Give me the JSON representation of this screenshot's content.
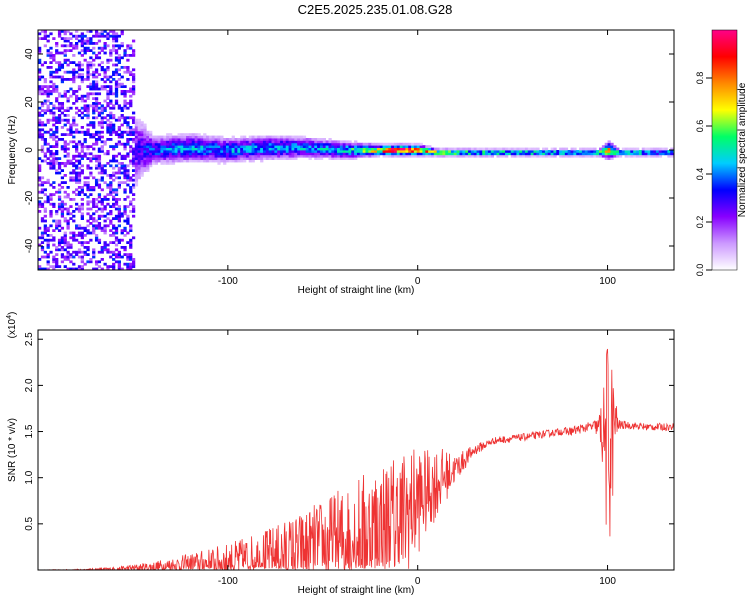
{
  "figure_title": "C2E5.2025.235.01.08.G28",
  "chart_data": [
    {
      "type": "heatmap",
      "title": "C2E5.2025.235.01.08.G28",
      "xlabel": "Height of straight line (km)",
      "ylabel": "Frequency (Hz)",
      "xlim": [
        -200,
        135
      ],
      "ylim": [
        -50,
        50
      ],
      "x_ticks": [
        -100,
        0,
        100
      ],
      "x_tick_labels": [
        "-100",
        "0",
        "100"
      ],
      "y_ticks": [
        -40,
        -20,
        0,
        20,
        40
      ],
      "y_tick_labels": [
        "-40",
        "-20",
        "0",
        "20",
        "40"
      ],
      "colorbar": {
        "label": "Normalized spectral amplitude",
        "range": [
          0.0,
          1.0
        ],
        "ticks": [
          0.0,
          0.2,
          0.4,
          0.6,
          0.8
        ],
        "tick_labels": [
          "0.0",
          "0.2",
          "0.4",
          "0.6",
          "0.8"
        ],
        "colormap": [
          "#ffffff",
          "#cc99ff",
          "#8800ff",
          "#0000ff",
          "#00ccff",
          "#00ff66",
          "#ffff00",
          "#ff8800",
          "#ff0000",
          "#ff0088"
        ]
      },
      "band_profile": {
        "x": [
          -200,
          -170,
          -155,
          -140,
          -120,
          -100,
          -80,
          -60,
          -40,
          -20,
          -10,
          0,
          10,
          30,
          60,
          95,
          100,
          105,
          135
        ],
        "center_hz": [
          0,
          0,
          0,
          0,
          1,
          0,
          1,
          1,
          0,
          0,
          0,
          0,
          -1,
          -1,
          -1,
          -1,
          0,
          -1,
          -1
        ],
        "halfwidth_hz": [
          40,
          40,
          30,
          8,
          8,
          7,
          7,
          6,
          5,
          3,
          3,
          3,
          2,
          2,
          2,
          2,
          5,
          2,
          2
        ],
        "peak_amplitude": [
          0.25,
          0.25,
          0.2,
          0.35,
          0.4,
          0.4,
          0.4,
          0.4,
          0.45,
          0.75,
          1.0,
          0.8,
          0.6,
          0.55,
          0.5,
          0.5,
          0.7,
          0.5,
          0.45
        ]
      }
    },
    {
      "type": "line",
      "xlabel": "Height of straight line (km)",
      "ylabel": "SNR (10 * v/v)",
      "y_scale_label": "(x10",
      "y_scale_exponent": "4",
      "y_scale_suffix": ")",
      "xlim": [
        -200,
        135
      ],
      "ylim": [
        0,
        2.6
      ],
      "x_ticks": [
        -100,
        0,
        100
      ],
      "x_tick_labels": [
        "-100",
        "0",
        "100"
      ],
      "y_ticks": [
        0.5,
        1.0,
        1.5,
        2.0,
        2.5
      ],
      "y_tick_labels": [
        "0.5",
        "1.0",
        "1.5",
        "2.0",
        "2.5"
      ],
      "line_color": "#ee3333",
      "series": [
        {
          "name": "SNR",
          "x": [
            -200,
            -180,
            -160,
            -140,
            -120,
            -100,
            -80,
            -60,
            -40,
            -20,
            -10,
            0,
            5,
            10,
            20,
            30,
            40,
            60,
            75,
            80,
            90,
            95,
            98,
            100,
            102,
            104,
            106,
            110,
            120,
            135
          ],
          "mean": [
            0.0,
            0.0,
            0.01,
            0.03,
            0.06,
            0.09,
            0.14,
            0.2,
            0.3,
            0.4,
            0.5,
            0.75,
            0.85,
            0.95,
            1.1,
            1.3,
            1.4,
            1.45,
            1.5,
            1.5,
            1.55,
            1.55,
            1.5,
            1.3,
            1.4,
            1.6,
            1.57,
            1.57,
            1.55,
            1.55
          ],
          "noise": [
            0.0,
            0.01,
            0.02,
            0.06,
            0.12,
            0.2,
            0.3,
            0.45,
            0.6,
            0.8,
            0.8,
            0.6,
            0.45,
            0.4,
            0.15,
            0.06,
            0.04,
            0.04,
            0.04,
            0.05,
            0.05,
            0.1,
            0.5,
            1.3,
            1.0,
            0.3,
            0.06,
            0.04,
            0.04,
            0.04
          ]
        }
      ]
    }
  ]
}
